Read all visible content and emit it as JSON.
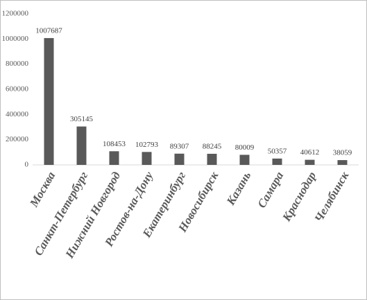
{
  "chart_data": {
    "type": "bar",
    "categories": [
      "Москва",
      "Санкт-Петербург",
      "Нижний Новгород",
      "Ростов-на-Дону",
      "Екатеринбург",
      "Новосибирск",
      "Казань",
      "Самара",
      "Краснодар",
      "Челябинск"
    ],
    "values": [
      1007687,
      305145,
      108453,
      102793,
      89307,
      88245,
      80009,
      50357,
      40612,
      38059
    ],
    "color": "#595959",
    "ylim": [
      0,
      1200000
    ],
    "yticks": [
      0,
      200000,
      400000,
      600000,
      800000,
      1000000,
      1200000
    ],
    "grid": false
  }
}
